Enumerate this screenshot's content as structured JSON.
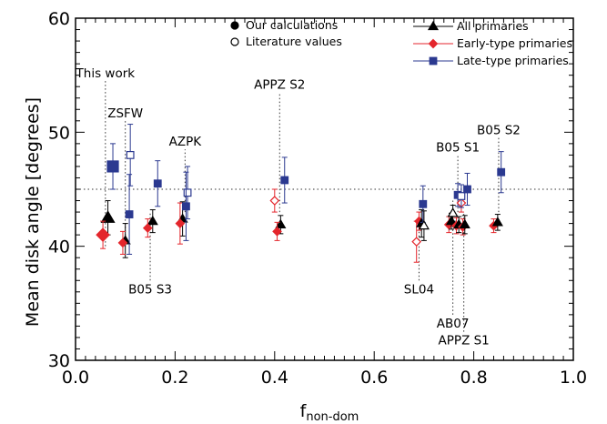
{
  "chart_data": {
    "type": "scatter",
    "xlabel": "f",
    "xlabel_sub": "non-dom",
    "ylabel": "Mean disk angle [degrees]",
    "xlim": [
      0.0,
      1.0
    ],
    "ylim": [
      30,
      60
    ],
    "xticks": [
      "0.0",
      "0.2",
      "0.4",
      "0.6",
      "0.8",
      "1.0"
    ],
    "yticks": [
      "30",
      "40",
      "50",
      "60"
    ],
    "reference_line_y": 45,
    "legend_left": [
      {
        "label": "Our calculations",
        "marker": "filled-circle"
      },
      {
        "label": "Literature values",
        "marker": "open-circle"
      }
    ],
    "legend_right": [
      {
        "label": "All primaries",
        "marker": "triangle",
        "color": "#000000"
      },
      {
        "label": "Early-type primaries",
        "marker": "diamond",
        "color": "#e4262c"
      },
      {
        "label": "Late-type primaries",
        "marker": "square",
        "color": "#2b3990"
      }
    ],
    "colors": {
      "all": "#000000",
      "early": "#e4262c",
      "late": "#2b3990"
    },
    "studies": [
      {
        "label": "This work",
        "label_pos": "top",
        "line_x": 0.06,
        "line_y": [
          40,
          54.5
        ],
        "points": [
          {
            "series": "all",
            "x": 0.065,
            "y": 42.5,
            "err": 1.5,
            "filled": true,
            "big": true
          },
          {
            "series": "early",
            "x": 0.055,
            "y": 41.0,
            "err": 1.2,
            "filled": true,
            "big": true
          },
          {
            "series": "late",
            "x": 0.075,
            "y": 47.0,
            "err": 2.0,
            "filled": true,
            "big": true
          }
        ]
      },
      {
        "label": "ZSFW",
        "label_pos": "top",
        "line_x": 0.1,
        "line_y": [
          40,
          51
        ],
        "points": [
          {
            "series": "all",
            "x": 0.1,
            "y": 40.5,
            "err": 1.5,
            "filled": true
          },
          {
            "series": "early",
            "x": 0.095,
            "y": 40.3,
            "err": 1.0,
            "filled": true
          },
          {
            "series": "late",
            "x": 0.11,
            "y": 48.0,
            "err": 2.7,
            "filled": false
          },
          {
            "series": "late",
            "x": 0.108,
            "y": 42.8,
            "err": 3.5,
            "filled": true
          }
        ]
      },
      {
        "label": "B05 S3",
        "label_pos": "bottom",
        "line_x": 0.15,
        "line_y": [
          37,
          43
        ],
        "points": [
          {
            "series": "all",
            "x": 0.155,
            "y": 42.2,
            "err": 1.0,
            "filled": true
          },
          {
            "series": "early",
            "x": 0.145,
            "y": 41.6,
            "err": 0.8,
            "filled": true
          },
          {
            "series": "late",
            "x": 0.165,
            "y": 45.5,
            "err": 2.0,
            "filled": true
          }
        ]
      },
      {
        "label": "AZPK",
        "label_pos": "top",
        "line_x": 0.22,
        "line_y": [
          43,
          48.5
        ],
        "points": [
          {
            "series": "all",
            "x": 0.215,
            "y": 42.4,
            "err": 1.5,
            "filled": true
          },
          {
            "series": "early",
            "x": 0.21,
            "y": 42.0,
            "err": 1.8,
            "filled": true
          },
          {
            "series": "late",
            "x": 0.225,
            "y": 44.7,
            "err": 2.3,
            "filled": false
          },
          {
            "series": "late",
            "x": 0.222,
            "y": 43.5,
            "err": 3.0,
            "filled": true
          }
        ]
      },
      {
        "label": "APPZ S2",
        "label_pos": "top",
        "line_x": 0.41,
        "line_y": [
          43,
          53.5
        ],
        "points": [
          {
            "series": "all",
            "x": 0.412,
            "y": 41.9,
            "err": 0.8,
            "filled": true
          },
          {
            "series": "early",
            "x": 0.405,
            "y": 41.3,
            "err": 0.8,
            "filled": true
          },
          {
            "series": "early",
            "x": 0.4,
            "y": 44.0,
            "err": 1.0,
            "filled": false
          },
          {
            "series": "late",
            "x": 0.42,
            "y": 45.8,
            "err": 2.0,
            "filled": true
          }
        ]
      },
      {
        "label": "SL04",
        "label_pos": "bottom",
        "line_x": 0.69,
        "line_y": [
          37,
          42
        ],
        "points": [
          {
            "series": "early",
            "x": 0.685,
            "y": 40.4,
            "err": 1.8,
            "filled": false
          },
          {
            "series": "early",
            "x": 0.69,
            "y": 42.2,
            "err": 0.8,
            "filled": true
          },
          {
            "series": "all",
            "x": 0.695,
            "y": 42.0,
            "err": 1.2,
            "filled": true
          },
          {
            "series": "late",
            "x": 0.698,
            "y": 43.7,
            "err": 1.6,
            "filled": true
          },
          {
            "series": "all",
            "x": 0.7,
            "y": 41.8,
            "err": 1.3,
            "filled": false
          }
        ]
      },
      {
        "label": "AB07",
        "label_pos": "bottom",
        "line_x": 0.758,
        "line_y": [
          34,
          44
        ],
        "points": [
          {
            "series": "early",
            "x": 0.75,
            "y": 41.9,
            "err": 0.7,
            "filled": true
          },
          {
            "series": "all",
            "x": 0.755,
            "y": 42.2,
            "err": 0.7,
            "filled": true
          },
          {
            "series": "all",
            "x": 0.758,
            "y": 42.9,
            "err": 0.7,
            "filled": false
          }
        ]
      },
      {
        "label": "B05 S1",
        "label_pos": "top",
        "line_x": 0.768,
        "line_y": [
          43,
          48
        ],
        "points": [
          {
            "series": "early",
            "x": 0.765,
            "y": 41.8,
            "err": 0.7,
            "filled": true
          },
          {
            "series": "all",
            "x": 0.77,
            "y": 41.9,
            "err": 0.7,
            "filled": true
          },
          {
            "series": "late",
            "x": 0.768,
            "y": 44.5,
            "err": 1.0,
            "filled": true
          }
        ]
      },
      {
        "label": "APPZ S1",
        "label_pos": "bottom",
        "line_x": 0.78,
        "line_y": [
          32.5,
          43
        ],
        "points": [
          {
            "series": "early",
            "x": 0.775,
            "y": 43.8,
            "err": 0.8,
            "filled": false
          },
          {
            "series": "early",
            "x": 0.778,
            "y": 41.7,
            "err": 0.7,
            "filled": true
          },
          {
            "series": "all",
            "x": 0.782,
            "y": 41.9,
            "err": 0.8,
            "filled": true
          },
          {
            "series": "late",
            "x": 0.775,
            "y": 44.4,
            "err": 1.0,
            "filled": false
          },
          {
            "series": "late",
            "x": 0.787,
            "y": 45.0,
            "err": 1.4,
            "filled": true
          }
        ]
      },
      {
        "label": "B05 S2",
        "label_pos": "top",
        "line_x": 0.85,
        "line_y": [
          43,
          49.5
        ],
        "points": [
          {
            "series": "early",
            "x": 0.84,
            "y": 41.8,
            "err": 0.6,
            "filled": true
          },
          {
            "series": "all",
            "x": 0.848,
            "y": 42.1,
            "err": 0.7,
            "filled": true
          },
          {
            "series": "late",
            "x": 0.855,
            "y": 46.5,
            "err": 1.8,
            "filled": true
          }
        ]
      }
    ]
  }
}
